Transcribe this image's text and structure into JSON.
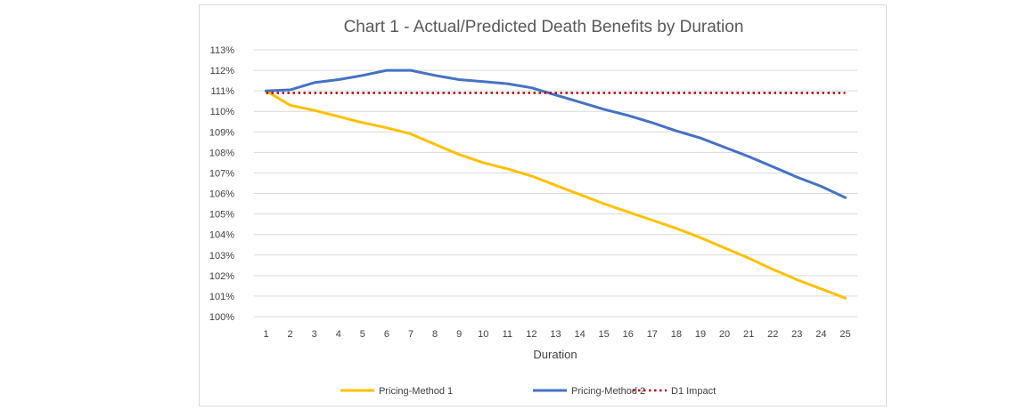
{
  "chart_data": {
    "type": "line",
    "title": "Chart 1 - Actual/Predicted Death Benefits by Duration",
    "xlabel": "Duration",
    "ylabel": "",
    "categories": [
      "1",
      "2",
      "3",
      "4",
      "5",
      "6",
      "7",
      "8",
      "9",
      "10",
      "11",
      "12",
      "13",
      "14",
      "15",
      "16",
      "17",
      "18",
      "19",
      "20",
      "21",
      "22",
      "23",
      "24",
      "25"
    ],
    "ylim": [
      100,
      113
    ],
    "yticks": [
      "100%",
      "101%",
      "102%",
      "103%",
      "104%",
      "105%",
      "106%",
      "107%",
      "108%",
      "109%",
      "110%",
      "111%",
      "112%",
      "113%"
    ],
    "grid": true,
    "legend_position": "bottom",
    "series": [
      {
        "name": "Pricing-Method 1",
        "color": "#FFC000",
        "style": "solid",
        "values": [
          111.0,
          110.3,
          110.05,
          109.75,
          109.45,
          109.2,
          108.9,
          108.4,
          107.9,
          107.5,
          107.2,
          106.85,
          106.4,
          105.95,
          105.5,
          105.1,
          104.7,
          104.3,
          103.85,
          103.35,
          102.85,
          102.3,
          101.8,
          101.35,
          100.9
        ]
      },
      {
        "name": "Pricing-Method 2",
        "color": "#4472C4",
        "style": "solid",
        "values": [
          111.0,
          111.05,
          111.4,
          111.55,
          111.75,
          112.0,
          112.0,
          111.75,
          111.55,
          111.45,
          111.35,
          111.15,
          110.8,
          110.45,
          110.1,
          109.8,
          109.45,
          109.05,
          108.7,
          108.25,
          107.8,
          107.3,
          106.8,
          106.35,
          105.8
        ]
      },
      {
        "name": "D1 Impact",
        "color": "#C00000",
        "style": "dotted",
        "values": [
          110.9,
          110.9,
          110.9,
          110.9,
          110.9,
          110.9,
          110.9,
          110.9,
          110.9,
          110.9,
          110.9,
          110.9,
          110.9,
          110.9,
          110.9,
          110.9,
          110.9,
          110.9,
          110.9,
          110.9,
          110.9,
          110.9,
          110.9,
          110.9,
          110.9
        ]
      }
    ]
  }
}
